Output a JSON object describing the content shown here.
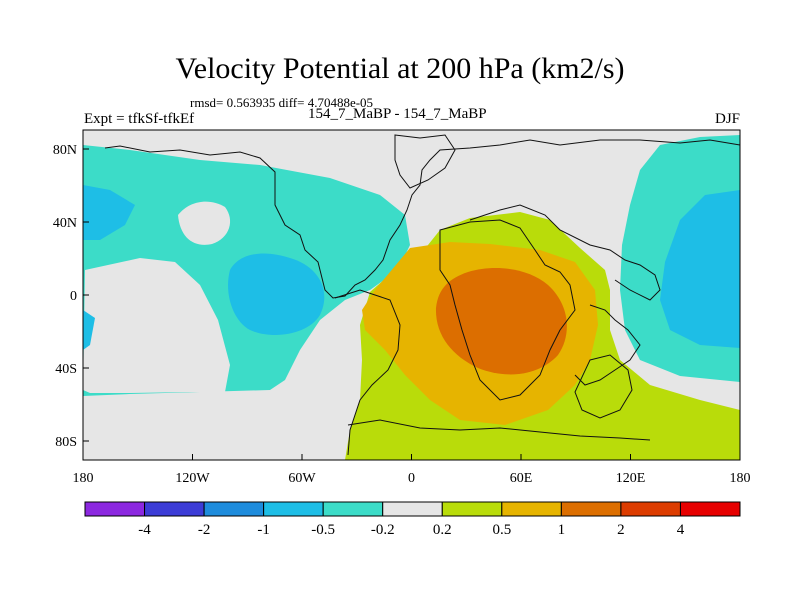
{
  "header": {
    "title": "Velocity Potential at 200 hPa (km2/s)",
    "stats": "rmsd= 0.563935  diff= 4.70488e-05",
    "left_label": "Expt = tfkSf-tfkEf",
    "center_label": "154_7_MaBP - 154_7_MaBP",
    "right_label": "DJF"
  },
  "chart_data": {
    "type": "heatmap",
    "title": "Velocity Potential at 200 hPa (km2/s)",
    "subtitle": "154_7_MaBP - 154_7_MaBP",
    "season": "DJF",
    "units": "km2/s",
    "x_axis": {
      "ticks": [
        "180",
        "120W",
        "60W",
        "0",
        "60E",
        "120E",
        "180"
      ],
      "range": [
        -180,
        180
      ]
    },
    "y_axis": {
      "ticks": [
        "80N",
        "40N",
        "0",
        "40S",
        "80S"
      ],
      "range": [
        -90,
        90
      ]
    },
    "colorbar": {
      "labels": [
        "-4",
        "-2",
        "-1",
        "-0.5",
        "-0.2",
        "0.2",
        "0.5",
        "1",
        "2",
        "4"
      ],
      "colors": [
        "#8c28e0",
        "#3c3cd6",
        "#1e8cdc",
        "#1ebee6",
        "#3cdcc8",
        "#e6e6e6",
        "#b9dc0a",
        "#e6b400",
        "#dc6e00",
        "#dc3c00",
        "#e60000"
      ]
    },
    "regions": [
      {
        "name": "negative anomaly, north Atlantic / Europe",
        "level": "-0.5 to -0.2"
      },
      {
        "name": "negative anomaly, Pacific",
        "level": "-1 to -0.5"
      },
      {
        "name": "positive anomaly, Africa / Indian Ocean",
        "level": "0.5 to 2"
      }
    ]
  }
}
